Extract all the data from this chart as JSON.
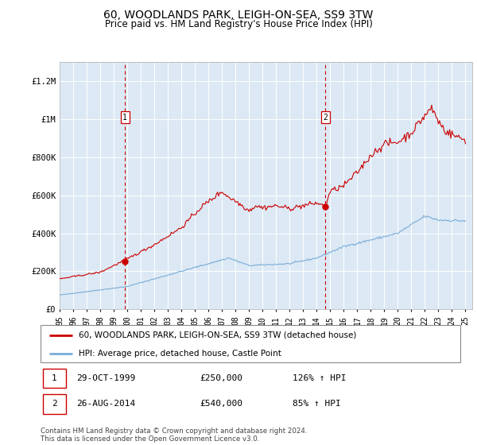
{
  "title": "60, WOODLANDS PARK, LEIGH-ON-SEA, SS9 3TW",
  "subtitle": "Price paid vs. HM Land Registry's House Price Index (HPI)",
  "ylim": [
    0,
    1300000
  ],
  "yticks": [
    0,
    200000,
    400000,
    600000,
    800000,
    1000000,
    1200000
  ],
  "ytick_labels": [
    "£0",
    "£200K",
    "£400K",
    "£600K",
    "£800K",
    "£1M",
    "£1.2M"
  ],
  "background_color": "#dce9f5",
  "legend_label_red": "60, WOODLANDS PARK, LEIGH-ON-SEA, SS9 3TW (detached house)",
  "legend_label_blue": "HPI: Average price, detached house, Castle Point",
  "footer": "Contains HM Land Registry data © Crown copyright and database right 2024.\nThis data is licensed under the Open Government Licence v3.0.",
  "sale1_date": "29-OCT-1999",
  "sale1_price": "£250,000",
  "sale1_hpi": "126% ↑ HPI",
  "sale2_date": "26-AUG-2014",
  "sale2_price": "£540,000",
  "sale2_hpi": "85% ↑ HPI",
  "red_color": "#cc0000",
  "blue_color": "#7aacd6",
  "marker1_x": 1999.83,
  "marker1_y": 250000,
  "marker2_x": 2014.65,
  "marker2_y": 540000,
  "xlim_left": 1995.0,
  "xlim_right": 2025.5,
  "xtick_years": [
    1995,
    1996,
    1997,
    1998,
    1999,
    2000,
    2001,
    2002,
    2003,
    2004,
    2005,
    2006,
    2007,
    2008,
    2009,
    2010,
    2011,
    2012,
    2013,
    2014,
    2015,
    2016,
    2017,
    2018,
    2019,
    2020,
    2021,
    2022,
    2023,
    2024,
    2025
  ]
}
